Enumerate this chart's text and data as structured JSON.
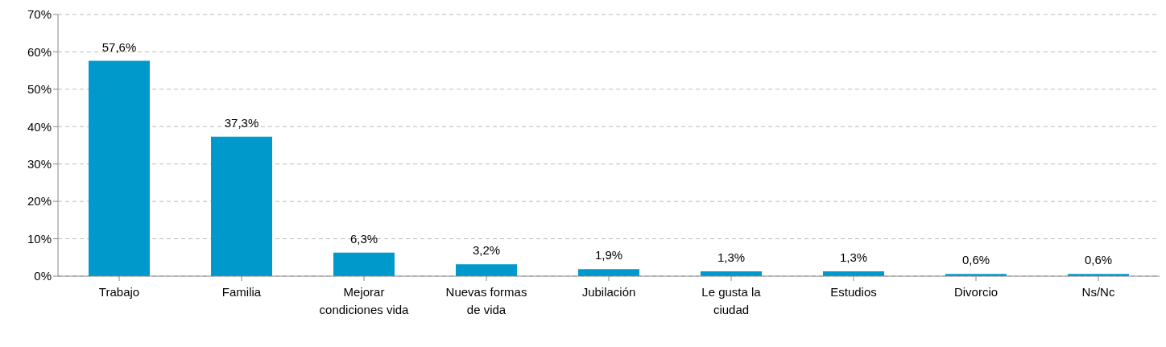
{
  "chart_data": {
    "type": "bar",
    "categories": [
      "Trabajo",
      "Familia",
      "Mejorar condiciones vida",
      "Nuevas formas de vida",
      "Jubilación",
      "Le gusta la ciudad",
      "Estudios",
      "Divorcio",
      "Ns/Nc"
    ],
    "values": [
      57.6,
      37.3,
      6.3,
      3.2,
      1.9,
      1.3,
      1.3,
      0.6,
      0.6
    ],
    "color": "#0099cc",
    "value_labels": [
      "57,6%",
      "37,3%",
      "6,3%",
      "3,2%",
      "1,9%",
      "1,3%",
      "1,3%",
      "0,6%",
      "0,6%"
    ],
    "ylim": [
      0,
      70
    ],
    "yticks": [
      {
        "value": 0,
        "label": "0%"
      },
      {
        "value": 10,
        "label": "10%"
      },
      {
        "value": 20,
        "label": "20%"
      },
      {
        "value": 30,
        "label": "30%"
      },
      {
        "value": 40,
        "label": "40%"
      },
      {
        "value": 50,
        "label": "50%"
      },
      {
        "value": 60,
        "label": "60%"
      },
      {
        "value": 70,
        "label": "70%"
      }
    ],
    "grid": "y",
    "legend": false
  }
}
